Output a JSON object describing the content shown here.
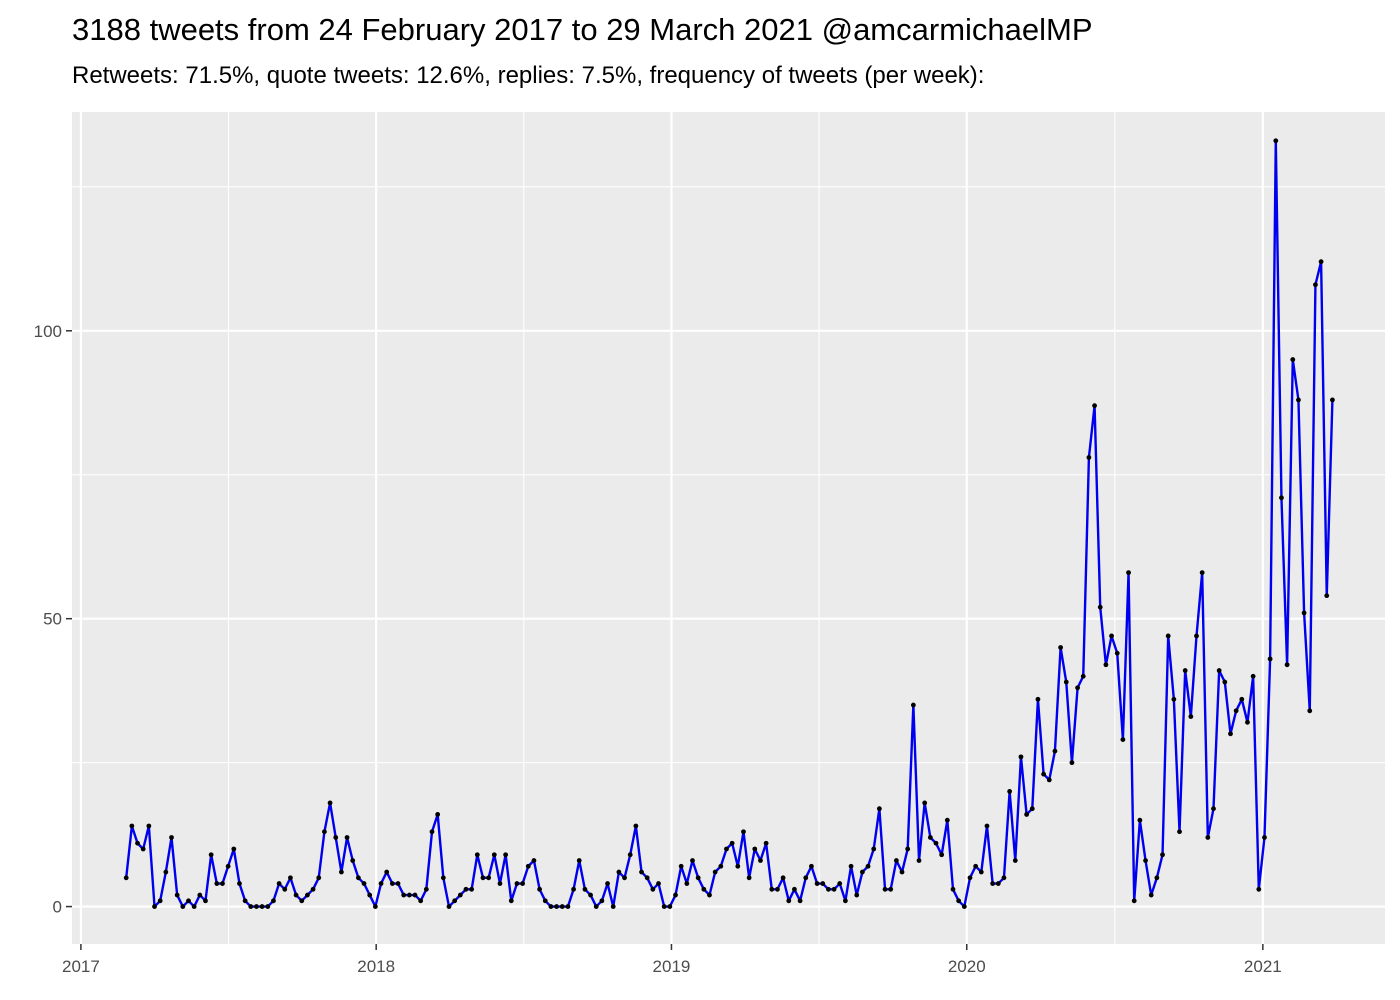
{
  "chart_data": {
    "type": "line",
    "title": "3188 tweets from 24 February 2017 to 29 March 2021 @amcarmichaelMP",
    "subtitle": "Retweets: 71.5%, quote tweets: 12.6%, replies: 7.5%, frequency of tweets (per week):",
    "xlabel": "",
    "ylabel": "",
    "x_start": "2017-02-26",
    "x_step_days": 7,
    "xlim": [
      "2016-12-21",
      "2021-06-01"
    ],
    "ylim": [
      -6.5,
      138
    ],
    "x_ticks": [
      {
        "date": "2017-01-01",
        "label": "2017"
      },
      {
        "date": "2018-01-01",
        "label": "2018"
      },
      {
        "date": "2019-01-01",
        "label": "2019"
      },
      {
        "date": "2020-01-01",
        "label": "2020"
      },
      {
        "date": "2021-01-01",
        "label": "2021"
      }
    ],
    "y_ticks": [
      0,
      50,
      100
    ],
    "grid": true,
    "line_color": "#0000ee",
    "point_color": "#000000",
    "panel_color": "#ebebeb",
    "series": [
      {
        "values": [
          5,
          14,
          11,
          10,
          14,
          0,
          1,
          6,
          12,
          2,
          0,
          1,
          0,
          2,
          1,
          9,
          4,
          4,
          7,
          10,
          4,
          1,
          0,
          0,
          0,
          0,
          1,
          4,
          3,
          5,
          2,
          1,
          2,
          3,
          5,
          13,
          18,
          12,
          6,
          12,
          8,
          5,
          4,
          2,
          0,
          4,
          6,
          4,
          4,
          2,
          2,
          2,
          1,
          3,
          13,
          16,
          5,
          0,
          1,
          2,
          3,
          3,
          9,
          5,
          5,
          9,
          4,
          9,
          1,
          4,
          4,
          7,
          8,
          3,
          1,
          0,
          0,
          0,
          0,
          3,
          8,
          3,
          2,
          0,
          1,
          4,
          0,
          6,
          5,
          9,
          14,
          6,
          5,
          3,
          4,
          0,
          0,
          2,
          7,
          4,
          8,
          5,
          3,
          2,
          6,
          7,
          10,
          11,
          7,
          13,
          5,
          10,
          8,
          11,
          3,
          3,
          5,
          1,
          3,
          1,
          5,
          7,
          4,
          4,
          3,
          3,
          4,
          1,
          7,
          2,
          6,
          7,
          10,
          17,
          3,
          3,
          8,
          6,
          10,
          35,
          8,
          18,
          12,
          11,
          9,
          15,
          3,
          1,
          0,
          5,
          7,
          6,
          14,
          4,
          4,
          5,
          20,
          8,
          26,
          16,
          17,
          36,
          23,
          22,
          27,
          45,
          39,
          25,
          38,
          40,
          78,
          87,
          52,
          42,
          47,
          44,
          29,
          58,
          1,
          15,
          8,
          2,
          5,
          9,
          47,
          36,
          13,
          41,
          33,
          47,
          58,
          12,
          17,
          41,
          39,
          30,
          34,
          36,
          32,
          40,
          3,
          12,
          43,
          133,
          71,
          42,
          95,
          88,
          51,
          34,
          108,
          112,
          54,
          88
        ]
      }
    ]
  }
}
